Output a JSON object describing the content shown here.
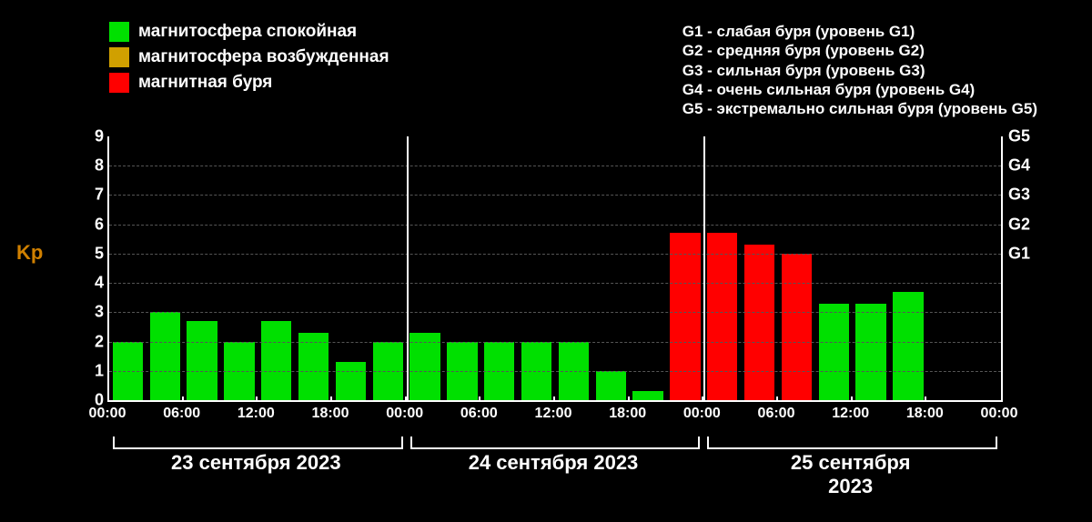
{
  "kp_chart": {
    "type": "bar",
    "background_color": "#000000",
    "grid_color": "#555555",
    "axis_color": "#ffffff",
    "y_label": "Kp",
    "y_label_color": "#d08000",
    "ylim": [
      0,
      9
    ],
    "yticks": [
      0,
      1,
      2,
      3,
      4,
      5,
      6,
      7,
      8,
      9
    ],
    "right_ticks": [
      {
        "label": "G1",
        "at": 5
      },
      {
        "label": "G2",
        "at": 6
      },
      {
        "label": "G3",
        "at": 7
      },
      {
        "label": "G4",
        "at": 8
      },
      {
        "label": "G5",
        "at": 9
      }
    ],
    "n_days": 3,
    "bars_per_day": 8,
    "bar_fill_ratio": 0.82,
    "values": [
      2.0,
      3.0,
      2.7,
      2.0,
      2.7,
      2.3,
      1.3,
      2.0,
      2.3,
      2.0,
      2.0,
      2.0,
      2.0,
      1.0,
      0.3,
      5.7,
      5.7,
      5.3,
      5.0,
      3.3,
      3.3,
      3.7,
      null,
      null
    ],
    "colors": [
      "#00e000",
      "#00e000",
      "#00e000",
      "#00e000",
      "#00e000",
      "#00e000",
      "#00e000",
      "#00e000",
      "#00e000",
      "#00e000",
      "#00e000",
      "#00e000",
      "#00e000",
      "#00e000",
      "#00e000",
      "#ff0000",
      "#ff0000",
      "#ff0000",
      "#ff0000",
      "#00e000",
      "#00e000",
      "#00e000",
      "",
      ""
    ],
    "x_tick_labels_per_day": [
      "00:00",
      "06:00",
      "12:00",
      "18:00"
    ],
    "x_final_tick": "00:00",
    "day_labels": [
      "23 сентября 2023",
      "24 сентября 2023",
      "25 сентября 2023"
    ],
    "legend": [
      {
        "color": "#00e000",
        "label": "магнитосфера спокойная"
      },
      {
        "color": "#d0a000",
        "label": "магнитосфера возбужденная"
      },
      {
        "color": "#ff0000",
        "label": "магнитная буря"
      }
    ],
    "g_scale_descriptions": [
      "G1 - слабая буря (уровень G1)",
      "G2 - средняя буря (уровень G2)",
      "G3 - сильная буря (уровень G3)",
      "G4 - очень сильная буря (уровень G4)",
      "G5 - экстремально сильная буря (уровень G5)"
    ],
    "label_fontsize": 19,
    "tick_fontsize": 18,
    "day_fontsize": 22
  }
}
